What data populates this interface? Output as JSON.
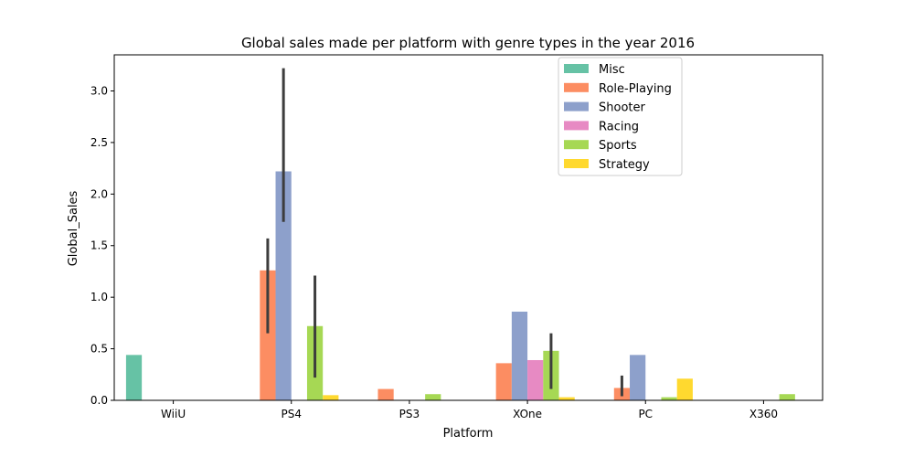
{
  "chart_data": {
    "type": "bar",
    "title": "Global sales made per platform with genre types in the year 2016",
    "xlabel": "Platform",
    "ylabel": "Global_Sales",
    "ylim": [
      0,
      3.35
    ],
    "yticks": [
      "0.0",
      "0.5",
      "1.0",
      "1.5",
      "2.0",
      "2.5",
      "3.0"
    ],
    "categories": [
      "WiiU",
      "PS4",
      "PS3",
      "XOne",
      "PC",
      "X360"
    ],
    "legend_position": "top-right",
    "grid": false,
    "series": [
      {
        "name": "Misc",
        "color": "#66c2a5",
        "values": [
          0.44,
          null,
          null,
          null,
          null,
          null
        ],
        "error": [
          null,
          null,
          null,
          null,
          null,
          null
        ]
      },
      {
        "name": "Role-Playing",
        "color": "#fc8d62",
        "values": [
          null,
          1.26,
          0.11,
          0.36,
          0.12,
          null
        ],
        "error": [
          null,
          [
            0.65,
            1.57
          ],
          null,
          null,
          [
            0.04,
            0.24
          ],
          null
        ]
      },
      {
        "name": "Shooter",
        "color": "#8da0cb",
        "values": [
          null,
          2.22,
          null,
          0.86,
          0.44,
          null
        ],
        "error": [
          null,
          [
            1.73,
            3.22
          ],
          null,
          null,
          null,
          null
        ]
      },
      {
        "name": "Racing",
        "color": "#e78ac3",
        "values": [
          null,
          null,
          null,
          0.39,
          null,
          null
        ],
        "error": [
          null,
          null,
          null,
          null,
          null,
          null
        ]
      },
      {
        "name": "Sports",
        "color": "#a6d854",
        "values": [
          null,
          0.72,
          0.06,
          0.48,
          0.03,
          0.06
        ],
        "error": [
          null,
          [
            0.22,
            1.21
          ],
          null,
          [
            0.11,
            0.65
          ],
          null,
          null
        ]
      },
      {
        "name": "Strategy",
        "color": "#ffd92f",
        "values": [
          null,
          0.05,
          0.0,
          0.03,
          0.21,
          null
        ],
        "error": [
          null,
          null,
          null,
          null,
          null,
          null
        ]
      }
    ]
  }
}
